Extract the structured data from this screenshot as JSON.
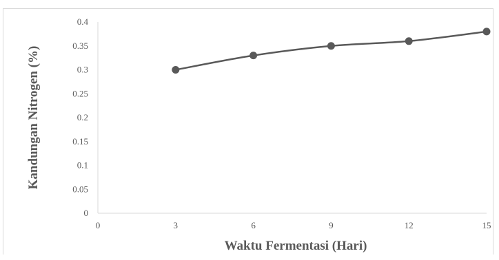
{
  "chart_data": {
    "type": "line",
    "title": "",
    "xlabel": "Waktu  Fermentasi (Hari)",
    "ylabel": "Kandungan Nitrogen (%)",
    "xlim": [
      0,
      15
    ],
    "ylim": [
      0,
      0.4
    ],
    "x_ticks": [
      "0",
      "3",
      "6",
      "9",
      "12",
      "15"
    ],
    "y_ticks": [
      "0",
      "0.05",
      "0.1",
      "0.15",
      "0.2",
      "0.25",
      "0.3",
      "0.35",
      "0.4"
    ],
    "grid": false,
    "legend": "none",
    "series": [
      {
        "x": [
          3,
          6,
          9,
          12,
          15
        ],
        "y": [
          0.3,
          0.33,
          0.35,
          0.36,
          0.38
        ],
        "color": "#595959",
        "marker": "circle",
        "smooth": true
      }
    ]
  }
}
